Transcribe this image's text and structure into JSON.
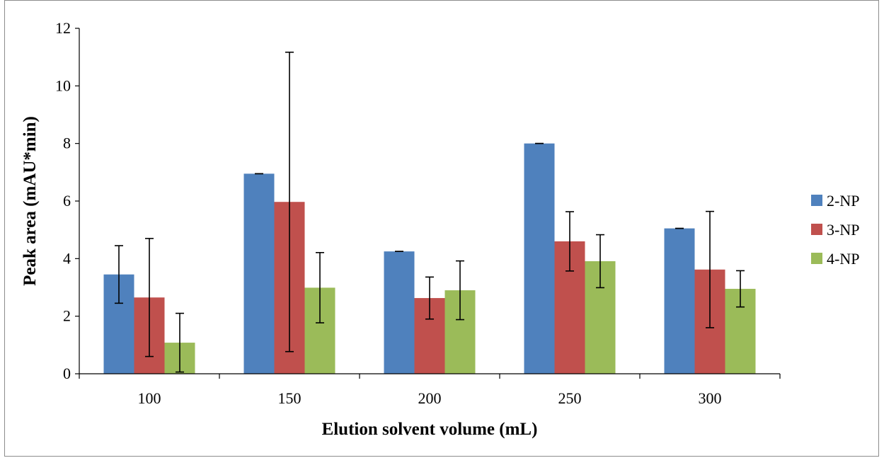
{
  "chart_data": {
    "type": "bar",
    "title": "",
    "xlabel": "Elution solvent volume (mL)",
    "ylabel": "Peak area (mAU*min)",
    "categories": [
      "100",
      "150",
      "200",
      "250",
      "300"
    ],
    "ylim": [
      0,
      12
    ],
    "yticks": [
      "0",
      "2",
      "4",
      "6",
      "8",
      "10",
      "12"
    ],
    "grid": false,
    "legend_position": "right",
    "series": [
      {
        "name": "2-NP",
        "color": "#4F81BD",
        "values": [
          3.45,
          6.95,
          4.25,
          8.0,
          5.05
        ],
        "errors": [
          1.0,
          0.0,
          0.0,
          0.0,
          0.0
        ]
      },
      {
        "name": "3-NP",
        "color": "#C0504D",
        "values": [
          2.65,
          5.97,
          2.63,
          4.6,
          3.62
        ],
        "errors": [
          2.05,
          5.2,
          0.73,
          1.03,
          2.02
        ]
      },
      {
        "name": "4-NP",
        "color": "#9BBB59",
        "values": [
          1.08,
          2.99,
          2.9,
          3.91,
          2.95
        ],
        "errors": [
          1.02,
          1.22,
          1.02,
          0.92,
          0.63
        ]
      }
    ]
  }
}
